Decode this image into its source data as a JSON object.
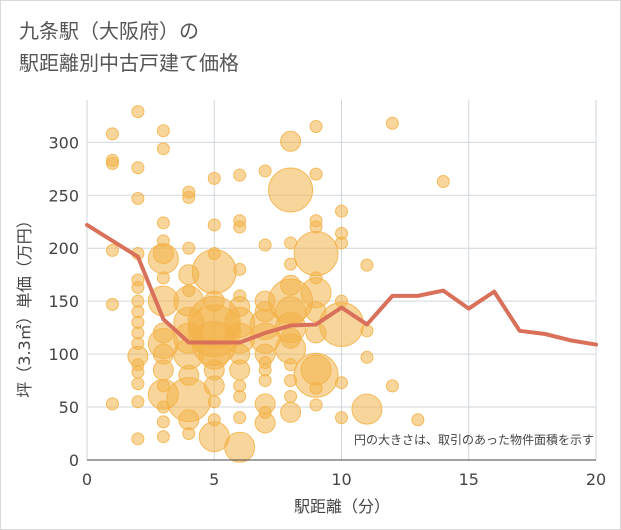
{
  "title_line1": "九条駅（大阪府）の",
  "title_line2": "駅距離別中古戸建て価格",
  "colors": {
    "bubble": "#f3b349",
    "line": "#d9705a",
    "grid": "#d0d7de",
    "axis": "#444444"
  },
  "chart_data": {
    "type": "scatter",
    "xlabel": "駅距離（分）",
    "ylabel": "坪（3.3㎡）単価（万円）",
    "xlim": [
      0,
      20
    ],
    "ylim": [
      0,
      340
    ],
    "xticks": [
      0,
      5,
      10,
      15,
      20
    ],
    "yticks": [
      0,
      50,
      100,
      150,
      200,
      250,
      300
    ],
    "annotation": "円の大きさは、取引のあった物件面積を示す",
    "bubbles": [
      [
        1,
        308,
        1
      ],
      [
        1,
        283,
        1
      ],
      [
        1,
        280,
        1
      ],
      [
        1,
        198,
        1
      ],
      [
        1,
        147,
        1
      ],
      [
        1,
        53,
        1
      ],
      [
        2,
        329,
        1
      ],
      [
        2,
        276,
        1
      ],
      [
        2,
        247,
        1
      ],
      [
        2,
        195,
        1
      ],
      [
        2,
        170,
        1
      ],
      [
        2,
        163,
        1
      ],
      [
        2,
        150,
        1
      ],
      [
        2,
        140,
        1
      ],
      [
        2,
        130,
        1
      ],
      [
        2,
        120,
        1
      ],
      [
        2,
        110,
        1
      ],
      [
        2,
        98,
        2
      ],
      [
        2,
        90,
        1
      ],
      [
        2,
        83,
        1
      ],
      [
        2,
        72,
        1
      ],
      [
        2,
        55,
        1
      ],
      [
        2,
        20,
        1
      ],
      [
        3,
        311,
        1
      ],
      [
        3,
        294,
        1
      ],
      [
        3,
        224,
        1
      ],
      [
        3,
        207,
        1
      ],
      [
        3,
        195,
        2
      ],
      [
        3,
        190,
        3
      ],
      [
        3,
        172,
        1
      ],
      [
        3,
        150,
        3
      ],
      [
        3,
        120,
        2
      ],
      [
        3,
        110,
        3
      ],
      [
        3,
        100,
        2
      ],
      [
        3,
        85,
        2
      ],
      [
        3,
        70,
        1
      ],
      [
        3,
        62,
        3
      ],
      [
        3,
        50,
        1
      ],
      [
        3,
        36,
        1
      ],
      [
        3,
        22,
        1
      ],
      [
        4,
        253,
        1
      ],
      [
        4,
        248,
        1
      ],
      [
        4,
        200,
        1
      ],
      [
        4,
        175,
        2
      ],
      [
        4,
        160,
        1
      ],
      [
        4,
        150,
        3
      ],
      [
        4,
        130,
        3
      ],
      [
        4,
        115,
        3
      ],
      [
        4,
        100,
        3
      ],
      [
        4,
        80,
        2
      ],
      [
        4,
        57,
        4
      ],
      [
        4,
        38,
        2
      ],
      [
        4,
        25,
        1
      ],
      [
        5,
        266,
        1
      ],
      [
        5,
        222,
        1
      ],
      [
        5,
        195,
        1
      ],
      [
        5,
        178,
        4
      ],
      [
        5,
        150,
        2
      ],
      [
        5,
        130,
        5
      ],
      [
        5,
        122,
        5
      ],
      [
        5,
        110,
        4
      ],
      [
        5,
        100,
        3
      ],
      [
        5,
        85,
        2
      ],
      [
        5,
        70,
        2
      ],
      [
        5,
        55,
        1
      ],
      [
        5,
        38,
        1
      ],
      [
        5,
        22,
        3
      ],
      [
        6,
        269,
        1
      ],
      [
        6,
        226,
        1
      ],
      [
        6,
        220,
        1
      ],
      [
        6,
        180,
        1
      ],
      [
        6,
        155,
        1
      ],
      [
        6,
        145,
        2
      ],
      [
        6,
        130,
        3
      ],
      [
        6,
        115,
        3
      ],
      [
        6,
        100,
        2
      ],
      [
        6,
        85,
        2
      ],
      [
        6,
        70,
        1
      ],
      [
        6,
        60,
        1
      ],
      [
        6,
        40,
        1
      ],
      [
        6,
        12,
        3
      ],
      [
        7,
        273,
        1
      ],
      [
        7,
        203,
        1
      ],
      [
        7,
        150,
        2
      ],
      [
        7,
        140,
        2
      ],
      [
        7,
        128,
        3
      ],
      [
        7,
        115,
        3
      ],
      [
        7,
        100,
        2
      ],
      [
        7,
        92,
        1
      ],
      [
        7,
        85,
        1
      ],
      [
        7,
        75,
        1
      ],
      [
        7,
        53,
        2
      ],
      [
        7,
        45,
        1
      ],
      [
        7,
        35,
        2
      ],
      [
        8,
        301,
        2
      ],
      [
        8,
        255,
        4
      ],
      [
        8,
        205,
        1
      ],
      [
        8,
        185,
        1
      ],
      [
        8,
        165,
        2
      ],
      [
        8,
        150,
        4
      ],
      [
        8,
        140,
        3
      ],
      [
        8,
        125,
        3
      ],
      [
        8,
        115,
        2
      ],
      [
        8,
        105,
        3
      ],
      [
        8,
        90,
        1
      ],
      [
        8,
        75,
        1
      ],
      [
        8,
        60,
        1
      ],
      [
        8,
        45,
        2
      ],
      [
        9,
        315,
        1
      ],
      [
        9,
        270,
        1
      ],
      [
        9,
        226,
        1
      ],
      [
        9,
        220,
        1
      ],
      [
        9,
        195,
        4
      ],
      [
        9,
        172,
        1
      ],
      [
        9,
        158,
        3
      ],
      [
        9,
        140,
        2
      ],
      [
        9,
        120,
        2
      ],
      [
        9,
        85,
        3
      ],
      [
        9,
        80,
        4
      ],
      [
        9,
        68,
        1
      ],
      [
        9,
        52,
        1
      ],
      [
        10,
        235,
        1
      ],
      [
        10,
        214,
        1
      ],
      [
        10,
        205,
        1
      ],
      [
        10,
        150,
        1
      ],
      [
        10,
        128,
        4
      ],
      [
        10,
        73,
        1
      ],
      [
        10,
        40,
        1
      ],
      [
        11,
        184,
        1
      ],
      [
        11,
        122,
        1
      ],
      [
        11,
        97,
        1
      ],
      [
        11,
        48,
        3
      ],
      [
        12,
        318,
        1
      ],
      [
        12,
        70,
        1
      ],
      [
        13,
        38,
        1
      ],
      [
        14,
        263,
        1
      ]
    ],
    "series": [
      {
        "type": "line",
        "x": [
          0,
          1,
          2,
          3,
          4,
          5,
          6,
          7,
          8,
          9,
          10,
          11,
          12,
          13,
          14,
          15,
          16,
          17,
          18,
          19,
          20
        ],
        "y": [
          222,
          207,
          192,
          133,
          111,
          111,
          111,
          120,
          127,
          128,
          144,
          128,
          155,
          155,
          160,
          143,
          159,
          122,
          119,
          113,
          109
        ]
      }
    ]
  }
}
